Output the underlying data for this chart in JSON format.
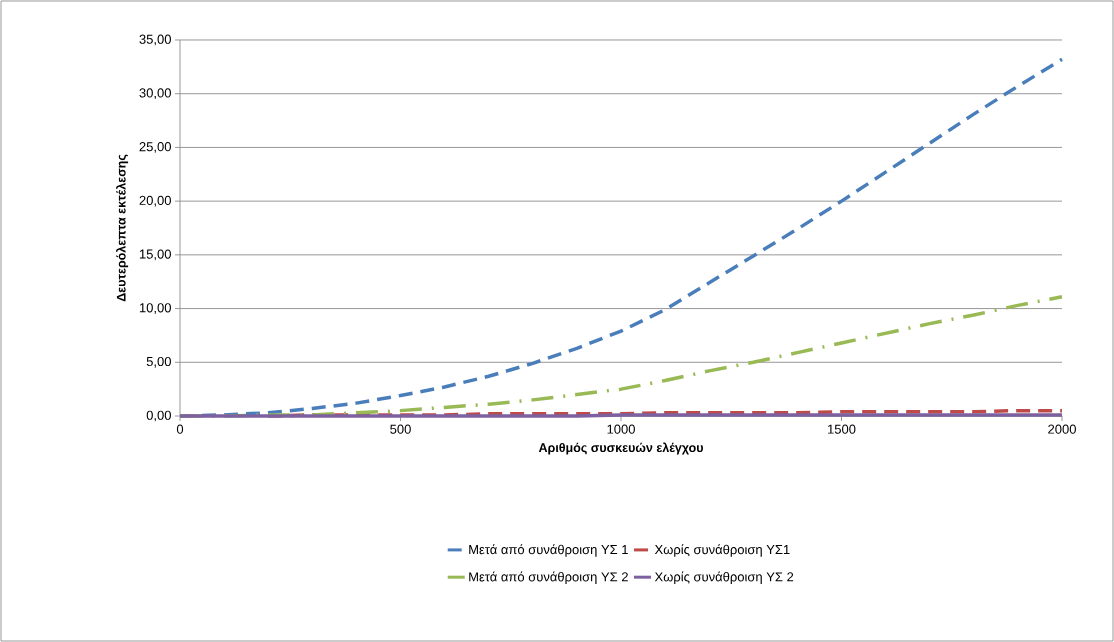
{
  "chart_data": {
    "type": "line",
    "xlabel": "Αριθμός συσκευών ελέγχου",
    "ylabel": "Δευτερόλεπτα εκτέλεσης",
    "x": [
      0,
      100,
      200,
      300,
      400,
      500,
      600,
      700,
      800,
      900,
      1000,
      1100,
      1200,
      1300,
      1400,
      1500,
      1600,
      1700,
      1800,
      1900,
      2000
    ],
    "series": [
      {
        "name": "Μετά από συνάθροιση ΥΣ 1",
        "color": "#4a7ebb",
        "line_style": "dashed",
        "values": [
          0,
          0.1,
          0.3,
          0.7,
          1.2,
          1.9,
          2.7,
          3.7,
          4.9,
          6.3,
          7.9,
          9.9,
          12.4,
          14.9,
          17.4,
          20.0,
          22.7,
          25.4,
          28.1,
          30.7,
          33.2
        ]
      },
      {
        "name": "Χωρίς συνάθροιση ΥΣ1",
        "color": "#be4b48",
        "line_style": "dashed",
        "values": [
          null,
          null,
          0,
          0.1,
          0.1,
          0.1,
          0.1,
          0.2,
          0.2,
          0.2,
          0.2,
          0.3,
          0.3,
          0.3,
          0.3,
          0.4,
          0.4,
          0.4,
          0.4,
          0.5,
          0.5
        ]
      },
      {
        "name": "Μετά από συνάθροιση ΥΣ 2",
        "color": "#98b954",
        "line_style": "dashdot",
        "values": [
          0,
          0,
          0.1,
          0.1,
          0.3,
          0.5,
          0.8,
          1.1,
          1.5,
          2.0,
          2.5,
          3.3,
          4.2,
          5.0,
          5.9,
          6.8,
          7.7,
          8.6,
          9.4,
          10.3,
          11.1
        ]
      },
      {
        "name": "Χωρίς συνάθροιση ΥΣ 2",
        "color": "#7d60a0",
        "line_style": "solid",
        "values": [
          0,
          0,
          0,
          0,
          0,
          0,
          0,
          0,
          0,
          0,
          0.1,
          0.1,
          0.1,
          0.1,
          0.1,
          0.1,
          0.1,
          0.1,
          0.1,
          0.1,
          0.1
        ]
      }
    ],
    "xlim": [
      0,
      2000
    ],
    "xticks": [
      0,
      500,
      1000,
      1500,
      2000
    ],
    "ylim": [
      0,
      35
    ],
    "yticks": [
      {
        "value": 0,
        "label": "0,00"
      },
      {
        "value": 5,
        "label": "5,00"
      },
      {
        "value": 10,
        "label": "10,00"
      },
      {
        "value": 15,
        "label": "15,00"
      },
      {
        "value": 20,
        "label": "20,00"
      },
      {
        "value": 25,
        "label": "25,00"
      },
      {
        "value": 30,
        "label": "30,00"
      },
      {
        "value": 35,
        "label": "35,00"
      }
    ],
    "grid": "y",
    "legend": "bottom",
    "marker": "none"
  }
}
